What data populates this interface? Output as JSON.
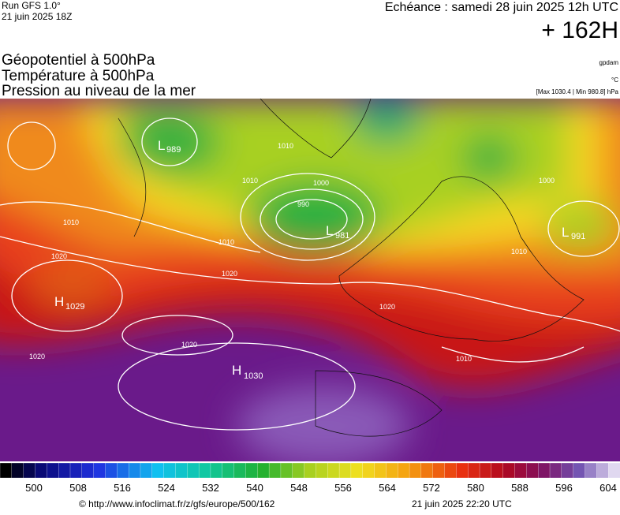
{
  "header": {
    "run": "Run GFS 1.0°",
    "run_date": "21 juin 2025 18Z",
    "valid": "Echéance : samedi 28 juin 2025 12h UTC",
    "lead": "+ 162H",
    "fields": [
      "Géopotentiel à 500hPa",
      "Température à 500hPa",
      "Pression au niveau de la mer"
    ],
    "units": [
      "gpdam",
      "°C",
      "[Max 1030.4 | Min 980.8] hPa"
    ]
  },
  "map": {
    "centers": [
      {
        "kind": "L",
        "value": "989"
      },
      {
        "kind": "L",
        "value": "981"
      },
      {
        "kind": "L",
        "value": "991"
      },
      {
        "kind": "H",
        "value": "1029"
      },
      {
        "kind": "H",
        "value": "1030"
      }
    ],
    "isobar_labels": [
      "1010",
      "1010",
      "1000",
      "990",
      "1010",
      "1020",
      "1020",
      "1020",
      "1020",
      "1020",
      "1010",
      "1000",
      "1010",
      "1010"
    ]
  },
  "colorbar": {
    "labels": [
      500,
      508,
      516,
      524,
      532,
      540,
      548,
      556,
      564,
      572,
      580,
      588,
      596,
      604
    ]
  },
  "footer": {
    "source": "© http://www.infoclimat.fr/z/gfs/europe/500/162",
    "generated": "21 juin 2025 22:20 UTC"
  }
}
